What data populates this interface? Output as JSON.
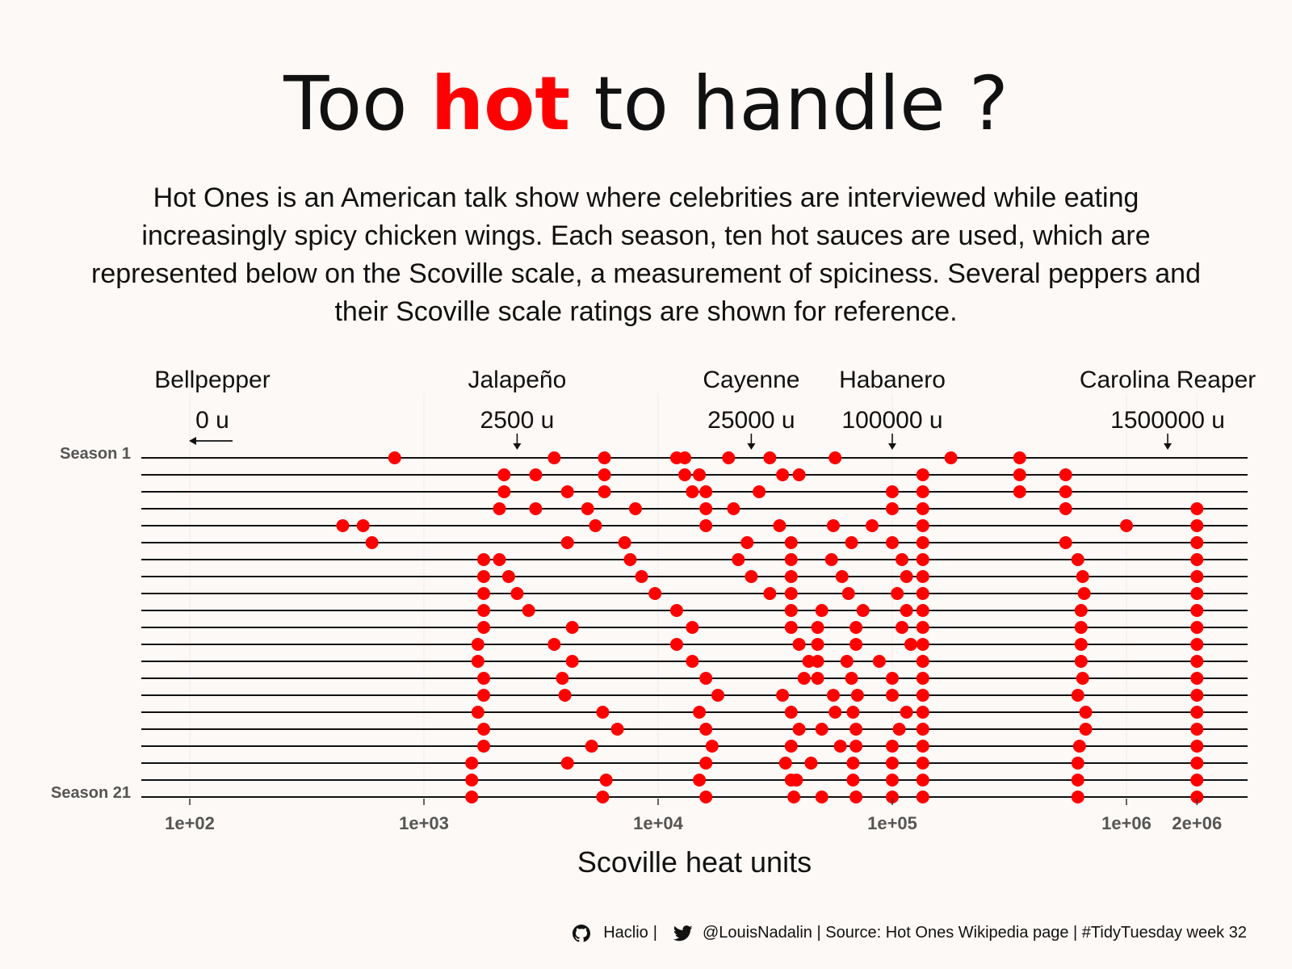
{
  "title": {
    "part1": "Too ",
    "highlight": "hot",
    "part2": " to handle ?"
  },
  "subtitle": "Hot Ones is an American talk show where celebrities are interviewed while eating increasingly spicy chicken wings. Each season, ten hot sauces are used, which are represented below on the Scoville scale, a measurement of spiciness. Several peppers and their Scoville scale ratings are shown for reference.",
  "caption": {
    "github_icon": "github-icon",
    "github_handle": "Haclio",
    "separator": "|",
    "twitter_icon": "twitter-icon",
    "rest": "@LouisNadalin | Source: Hot Ones Wikipedia page | #TidyTuesday week 32"
  },
  "colors": {
    "point": "#ff0000",
    "background": "#fdf9f6",
    "line": "#111111"
  },
  "chart_data": {
    "type": "scatter",
    "xlabel": "Scoville heat units",
    "x_scale": "log10",
    "xlim": [
      60,
      3500000
    ],
    "x_ticks": [
      {
        "value": 100,
        "label": "1e+02"
      },
      {
        "value": 1000,
        "label": "1e+03"
      },
      {
        "value": 10000,
        "label": "1e+04"
      },
      {
        "value": 100000,
        "label": "1e+05"
      },
      {
        "value": 1000000,
        "label": "1e+06"
      },
      {
        "value": 2000000,
        "label": "2e+06"
      }
    ],
    "y_labels": {
      "first": "Season 1",
      "last": "Season 21"
    },
    "seasons": [
      {
        "season": 1,
        "sauces": [
          750,
          3600,
          5900,
          12000,
          13000,
          20000,
          30000,
          57000,
          178000,
          350000
        ]
      },
      {
        "season": 2,
        "sauces": [
          2200,
          3000,
          5900,
          13000,
          15000,
          34000,
          40000,
          135000,
          350000,
          550000
        ]
      },
      {
        "season": 3,
        "sauces": [
          2200,
          4100,
          5900,
          14000,
          16000,
          27000,
          100000,
          135000,
          350000,
          550000
        ]
      },
      {
        "season": 4,
        "sauces": [
          2100,
          3000,
          5000,
          8000,
          16000,
          21000,
          100000,
          135000,
          550000,
          2000000
        ]
      },
      {
        "season": 5,
        "sauces": [
          450,
          550,
          5400,
          16000,
          33000,
          56000,
          82000,
          135000,
          1000000,
          2000000
        ]
      },
      {
        "season": 6,
        "sauces": [
          600,
          4100,
          7200,
          24000,
          37000,
          67000,
          100000,
          135000,
          550000,
          2000000
        ]
      },
      {
        "season": 7,
        "sauces": [
          1800,
          2100,
          7600,
          22000,
          37000,
          55000,
          110000,
          135000,
          620000,
          2000000
        ]
      },
      {
        "season": 8,
        "sauces": [
          1800,
          2300,
          8500,
          25000,
          37000,
          61000,
          115000,
          135000,
          650000,
          2000000
        ]
      },
      {
        "season": 9,
        "sauces": [
          1800,
          2500,
          9700,
          30000,
          37000,
          65000,
          105000,
          135000,
          660000,
          2000000
        ]
      },
      {
        "season": 10,
        "sauces": [
          1800,
          2800,
          12000,
          37000,
          50000,
          75000,
          115000,
          135000,
          640000,
          2000000
        ]
      },
      {
        "season": 11,
        "sauces": [
          1800,
          4300,
          14000,
          37000,
          48000,
          70000,
          110000,
          135000,
          640000,
          2000000
        ]
      },
      {
        "season": 12,
        "sauces": [
          1700,
          3600,
          12000,
          40000,
          48000,
          70000,
          120000,
          135000,
          640000,
          2000000
        ]
      },
      {
        "season": 13,
        "sauces": [
          1700,
          4300,
          14000,
          44000,
          48000,
          64000,
          88000,
          135000,
          640000,
          2000000
        ]
      },
      {
        "season": 14,
        "sauces": [
          1800,
          3900,
          16000,
          42000,
          48000,
          67000,
          100000,
          135000,
          650000,
          2000000
        ]
      },
      {
        "season": 15,
        "sauces": [
          1800,
          4000,
          18000,
          34000,
          56000,
          71000,
          100000,
          135000,
          620000,
          2000000
        ]
      },
      {
        "season": 16,
        "sauces": [
          1700,
          5800,
          15000,
          37000,
          57000,
          68000,
          115000,
          135000,
          670000,
          2000000
        ]
      },
      {
        "season": 17,
        "sauces": [
          1800,
          6700,
          16000,
          40000,
          50000,
          70000,
          107000,
          135000,
          670000,
          2000000
        ]
      },
      {
        "season": 18,
        "sauces": [
          1800,
          5200,
          17000,
          37000,
          60000,
          70000,
          100000,
          135000,
          630000,
          2000000
        ]
      },
      {
        "season": 19,
        "sauces": [
          1600,
          4100,
          16000,
          35000,
          45000,
          68000,
          100000,
          135000,
          620000,
          2000000
        ]
      },
      {
        "season": 20,
        "sauces": [
          1600,
          6000,
          15000,
          37000,
          39000,
          68000,
          100000,
          135000,
          620000,
          2000000
        ]
      },
      {
        "season": 21,
        "sauces": [
          1600,
          5800,
          16000,
          38000,
          50000,
          70000,
          100000,
          135000,
          620000,
          2000000
        ]
      }
    ],
    "reference_peppers": [
      {
        "name": "Bellpepper",
        "label": "0 u",
        "scoville": 0,
        "marker": "left-arrow"
      },
      {
        "name": "Jalapeño",
        "label": "2500 u",
        "scoville": 2500,
        "marker": "down-arrow"
      },
      {
        "name": "Cayenne",
        "label": "25000 u",
        "scoville": 25000,
        "marker": "down-arrow"
      },
      {
        "name": "Habanero",
        "label": "100000 u",
        "scoville": 100000,
        "marker": "down-arrow"
      },
      {
        "name": "Carolina Reaper",
        "label": "1500000 u",
        "scoville": 1500000,
        "marker": "down-arrow"
      }
    ]
  }
}
